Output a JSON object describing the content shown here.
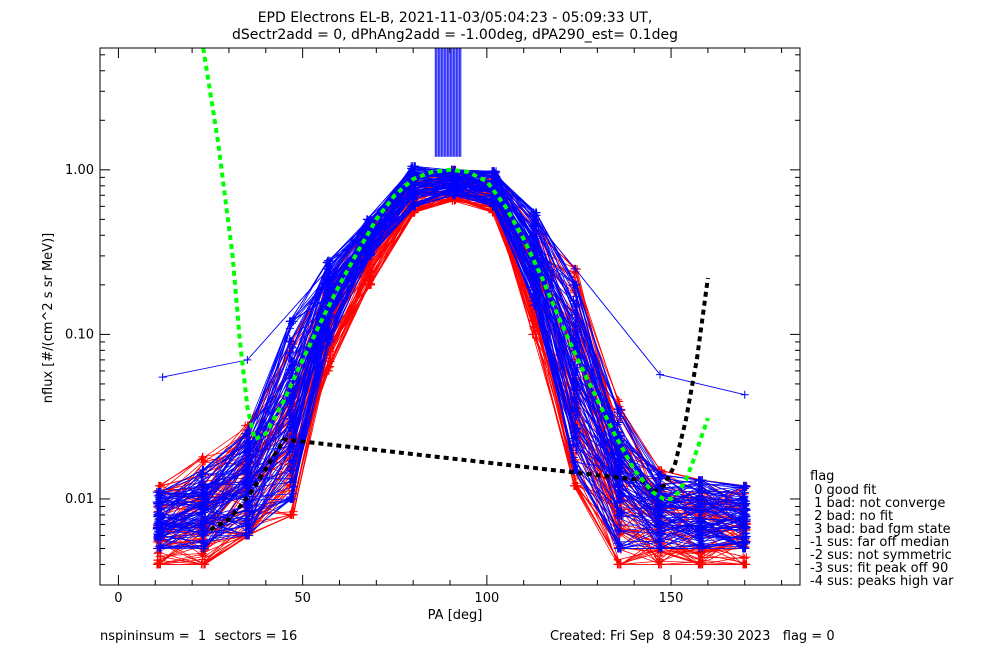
{
  "title_line1": "EPD Electrons EL-B, 2021-11-03/05:04:23 - 05:09:33 UT,",
  "title_line2": "dSectr2add = 0, dPhAng2add = -1.00deg, dPA290_est=   0.1deg",
  "footer_left": "nspininsum =  1  sectors = 16",
  "footer_right": "Created: Fri Sep  8 04:59:30 2023   flag = 0",
  "flag_legend": {
    "title": "flag",
    "items": [
      " 0 good fit",
      " 1 bad: not converge",
      " 2 bad: no fit",
      " 3 bad: bad fgm state",
      "-1 sus: far off median",
      "-2 sus: not symmetric",
      "-3 sus: fit peak off 90",
      "-4 sus: peaks high var"
    ]
  },
  "colors": {
    "red_series": "#ff0000",
    "blue_series": "#0000ff",
    "green_fit": "#00ff00",
    "black_fit": "#000000",
    "axes": "#000000"
  },
  "chart_data": {
    "type": "line",
    "xlabel": "PA [deg]",
    "ylabel": "nflux [#/(cm^2 s sr MeV)]",
    "xlim": [
      -5,
      185
    ],
    "ylim": [
      0.003,
      5.5
    ],
    "yscale": "log",
    "x_ticks": [
      0,
      50,
      100,
      150
    ],
    "x_tick_labels": [
      "0",
      "50",
      "100",
      "150"
    ],
    "y_ticks": [
      0.01,
      0.1,
      1.0
    ],
    "y_tick_labels": [
      "0.01",
      "0.10",
      "1.00"
    ],
    "grid": false,
    "sample_pa": [
      11,
      23,
      35,
      47,
      57,
      68,
      80,
      91,
      102,
      113,
      124,
      136,
      147,
      158,
      170
    ],
    "red_envelope": {
      "low": [
        0.004,
        0.004,
        0.006,
        0.008,
        0.06,
        0.2,
        0.55,
        0.65,
        0.55,
        0.1,
        0.012,
        0.004,
        0.004,
        0.004,
        0.004
      ],
      "high": [
        0.012,
        0.018,
        0.028,
        0.09,
        0.22,
        0.45,
        0.95,
        1.0,
        0.95,
        0.5,
        0.25,
        0.04,
        0.015,
        0.013,
        0.012
      ]
    },
    "blue_envelope": {
      "low": [
        0.005,
        0.005,
        0.006,
        0.01,
        0.09,
        0.3,
        0.6,
        0.7,
        0.6,
        0.15,
        0.015,
        0.005,
        0.005,
        0.005,
        0.005
      ],
      "high": [
        0.011,
        0.015,
        0.025,
        0.12,
        0.28,
        0.5,
        1.05,
        1.0,
        0.98,
        0.55,
        0.2,
        0.035,
        0.014,
        0.013,
        0.012
      ]
    },
    "blue_outlier": {
      "x": [
        12,
        35,
        57,
        80,
        102,
        124,
        147,
        170
      ],
      "y": [
        0.055,
        0.07,
        0.25,
        0.98,
        0.98,
        0.25,
        0.057,
        0.043
      ]
    },
    "green_fit": {
      "x": [
        23,
        27,
        31,
        33,
        35,
        37,
        40,
        45,
        50,
        55,
        60,
        65,
        70,
        75,
        80,
        85,
        90,
        95,
        100,
        105,
        110,
        115,
        120,
        125,
        130,
        135,
        140,
        145,
        148,
        150,
        152,
        154,
        156,
        158,
        160
      ],
      "y": [
        5.5,
        1.5,
        0.3,
        0.09,
        0.036,
        0.023,
        0.025,
        0.04,
        0.07,
        0.12,
        0.2,
        0.32,
        0.5,
        0.7,
        0.88,
        0.97,
        1.0,
        0.97,
        0.85,
        0.6,
        0.38,
        0.22,
        0.12,
        0.068,
        0.04,
        0.024,
        0.015,
        0.011,
        0.01,
        0.01,
        0.011,
        0.013,
        0.017,
        0.023,
        0.031
      ]
    },
    "black_fit": {
      "x": [
        25,
        30,
        33,
        36,
        39,
        42,
        45,
        142,
        145,
        148,
        151,
        154,
        157,
        160
      ],
      "y": [
        0.0065,
        0.0075,
        0.009,
        0.011,
        0.014,
        0.018,
        0.023,
        0.013,
        0.011,
        0.012,
        0.016,
        0.03,
        0.07,
        0.22
      ]
    },
    "overflow_band": {
      "x": [
        86,
        93
      ],
      "y_from": 1.2,
      "y_to": 5.5
    }
  }
}
